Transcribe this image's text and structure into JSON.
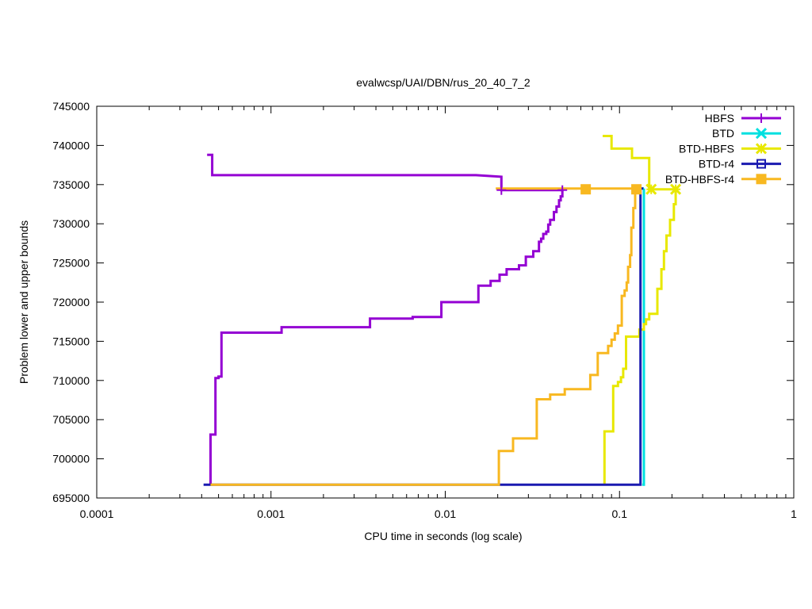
{
  "chart_data": {
    "type": "line",
    "title": "evalwcsp/UAI/DBN/rus_20_40_7_2",
    "xlabel": "CPU time in seconds (log scale)",
    "ylabel": "Problem lower and upper bounds",
    "xscale": "log",
    "xlim": [
      0.0001,
      1
    ],
    "ylim": [
      695000,
      745000
    ],
    "x_ticks": [
      0.0001,
      0.001,
      0.01,
      0.1,
      1
    ],
    "x_tick_labels": [
      "0.0001",
      "0.001",
      "0.01",
      "0.1",
      "1"
    ],
    "y_ticks": [
      695000,
      700000,
      705000,
      710000,
      715000,
      720000,
      725000,
      730000,
      735000,
      740000,
      745000
    ],
    "y_tick_labels": [
      "695000",
      "700000",
      "705000",
      "710000",
      "715000",
      "720000",
      "725000",
      "730000",
      "735000",
      "740000",
      "745000"
    ],
    "legend_position": "top-right",
    "series": [
      {
        "name": "HBFS",
        "color": "#9400d3",
        "marker": "plus",
        "upper": [
          [
            0.00043,
            738800
          ],
          [
            0.00046,
            738800
          ],
          [
            0.00046,
            736200
          ],
          [
            0.015,
            736200
          ],
          [
            0.021,
            736000
          ],
          [
            0.021,
            734300
          ],
          [
            0.047,
            734300
          ]
        ],
        "lower": [
          [
            0.00045,
            696700
          ],
          [
            0.00045,
            703100
          ],
          [
            0.00048,
            703100
          ],
          [
            0.00048,
            710300
          ],
          [
            0.0005,
            710300
          ],
          [
            0.0005,
            710500
          ],
          [
            0.00052,
            710500
          ],
          [
            0.00052,
            716100
          ],
          [
            0.00115,
            716100
          ],
          [
            0.00115,
            716800
          ],
          [
            0.0037,
            716800
          ],
          [
            0.0037,
            717900
          ],
          [
            0.0065,
            717900
          ],
          [
            0.0065,
            718100
          ],
          [
            0.0095,
            718100
          ],
          [
            0.0095,
            720000
          ],
          [
            0.0155,
            720000
          ],
          [
            0.0155,
            722100
          ],
          [
            0.0182,
            722100
          ],
          [
            0.0182,
            722700
          ],
          [
            0.0205,
            722700
          ],
          [
            0.0205,
            723500
          ],
          [
            0.0225,
            723500
          ],
          [
            0.0225,
            724200
          ],
          [
            0.0265,
            724200
          ],
          [
            0.0265,
            724700
          ],
          [
            0.029,
            724700
          ],
          [
            0.029,
            725800
          ],
          [
            0.032,
            725800
          ],
          [
            0.032,
            726500
          ],
          [
            0.0345,
            726500
          ],
          [
            0.0345,
            727700
          ],
          [
            0.0355,
            727700
          ],
          [
            0.0355,
            728100
          ],
          [
            0.0365,
            728100
          ],
          [
            0.0365,
            728700
          ],
          [
            0.038,
            728700
          ],
          [
            0.038,
            729000
          ],
          [
            0.039,
            729000
          ],
          [
            0.039,
            729900
          ],
          [
            0.04,
            729900
          ],
          [
            0.04,
            730500
          ],
          [
            0.042,
            730500
          ],
          [
            0.042,
            731500
          ],
          [
            0.0435,
            731500
          ],
          [
            0.0435,
            732200
          ],
          [
            0.045,
            732200
          ],
          [
            0.045,
            733000
          ],
          [
            0.046,
            733000
          ],
          [
            0.046,
            733500
          ],
          [
            0.047,
            733500
          ],
          [
            0.047,
            734300
          ]
        ],
        "markers": [
          [
            0.021,
            734300
          ],
          [
            0.047,
            734300
          ]
        ]
      },
      {
        "name": "BTD",
        "color": "#00e0e0",
        "marker": "x",
        "upper": [
          [
            0.135,
            734500
          ],
          [
            0.138,
            734500
          ]
        ],
        "lower": [
          [
            0.135,
            696700
          ],
          [
            0.138,
            696700
          ],
          [
            0.138,
            734500
          ]
        ],
        "markers": []
      },
      {
        "name": "BTD-HBFS",
        "color": "#e8e800",
        "marker": "star",
        "upper": [
          [
            0.08,
            741200
          ],
          [
            0.09,
            741200
          ],
          [
            0.09,
            739600
          ],
          [
            0.118,
            739600
          ],
          [
            0.118,
            738400
          ],
          [
            0.148,
            738400
          ],
          [
            0.148,
            734400
          ],
          [
            0.21,
            734400
          ]
        ],
        "lower": [
          [
            0.082,
            696700
          ],
          [
            0.082,
            703500
          ],
          [
            0.092,
            703500
          ],
          [
            0.092,
            709300
          ],
          [
            0.098,
            709300
          ],
          [
            0.098,
            709800
          ],
          [
            0.102,
            709800
          ],
          [
            0.102,
            710400
          ],
          [
            0.105,
            710400
          ],
          [
            0.105,
            711500
          ],
          [
            0.109,
            711500
          ],
          [
            0.109,
            715600
          ],
          [
            0.13,
            715600
          ],
          [
            0.13,
            716500
          ],
          [
            0.138,
            716500
          ],
          [
            0.138,
            717200
          ],
          [
            0.142,
            717200
          ],
          [
            0.142,
            717800
          ],
          [
            0.148,
            717800
          ],
          [
            0.148,
            718500
          ],
          [
            0.165,
            718500
          ],
          [
            0.165,
            721700
          ],
          [
            0.174,
            721700
          ],
          [
            0.174,
            724200
          ],
          [
            0.18,
            724200
          ],
          [
            0.18,
            726500
          ],
          [
            0.186,
            726500
          ],
          [
            0.186,
            728500
          ],
          [
            0.195,
            728500
          ],
          [
            0.195,
            730500
          ],
          [
            0.205,
            730500
          ],
          [
            0.205,
            732500
          ],
          [
            0.21,
            732500
          ],
          [
            0.21,
            734400
          ]
        ],
        "markers": [
          [
            0.152,
            734400
          ],
          [
            0.21,
            734400
          ]
        ]
      },
      {
        "name": "BTD-r4",
        "color": "#1a1ab0",
        "marker": "square",
        "upper": [
          [
            0.132,
            734500
          ],
          [
            0.137,
            734500
          ]
        ],
        "lower": [
          [
            0.00041,
            696700
          ],
          [
            0.00043,
            696700
          ],
          [
            0.0205,
            696700
          ],
          [
            0.132,
            696700
          ],
          [
            0.132,
            734500
          ]
        ],
        "markers": []
      },
      {
        "name": "BTD-HBFS-r4",
        "color": "#f8b820",
        "marker": "filled-square",
        "upper": [
          [
            0.0195,
            734500
          ],
          [
            0.125,
            734500
          ]
        ],
        "lower": [
          [
            0.00045,
            696700
          ],
          [
            0.0203,
            696700
          ],
          [
            0.0203,
            701000
          ],
          [
            0.0245,
            701000
          ],
          [
            0.0245,
            702600
          ],
          [
            0.0335,
            702600
          ],
          [
            0.0335,
            707600
          ],
          [
            0.04,
            707600
          ],
          [
            0.04,
            708200
          ],
          [
            0.0485,
            708200
          ],
          [
            0.0485,
            708900
          ],
          [
            0.068,
            708900
          ],
          [
            0.068,
            710700
          ],
          [
            0.075,
            710700
          ],
          [
            0.075,
            713500
          ],
          [
            0.086,
            713500
          ],
          [
            0.086,
            714400
          ],
          [
            0.09,
            714400
          ],
          [
            0.09,
            715200
          ],
          [
            0.094,
            715200
          ],
          [
            0.094,
            716000
          ],
          [
            0.098,
            716000
          ],
          [
            0.098,
            717000
          ],
          [
            0.103,
            717000
          ],
          [
            0.103,
            720800
          ],
          [
            0.107,
            720800
          ],
          [
            0.107,
            721500
          ],
          [
            0.11,
            721500
          ],
          [
            0.11,
            722500
          ],
          [
            0.112,
            722500
          ],
          [
            0.112,
            724500
          ],
          [
            0.115,
            724500
          ],
          [
            0.115,
            726000
          ],
          [
            0.117,
            726000
          ],
          [
            0.117,
            729500
          ],
          [
            0.12,
            729500
          ],
          [
            0.12,
            732000
          ],
          [
            0.123,
            732000
          ],
          [
            0.123,
            734500
          ]
        ],
        "markers": [
          [
            0.064,
            734400
          ],
          [
            0.125,
            734400
          ]
        ]
      }
    ]
  }
}
